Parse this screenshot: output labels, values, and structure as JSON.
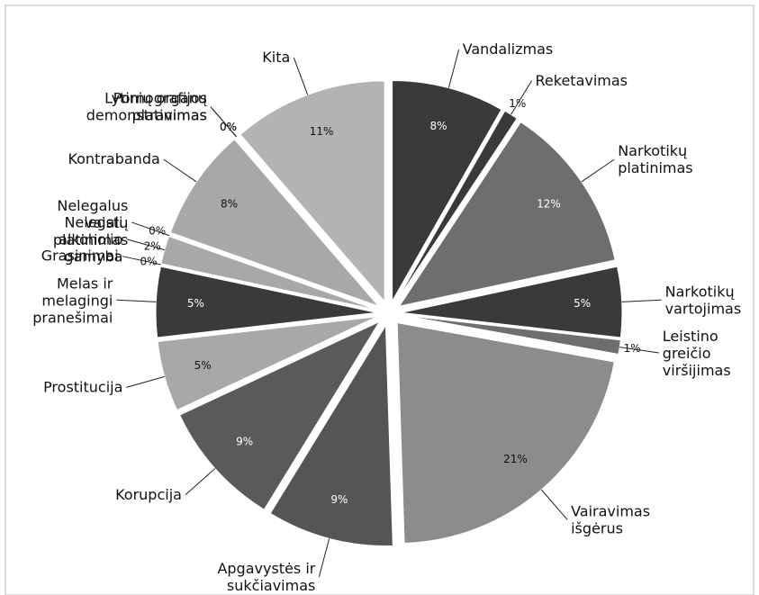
{
  "chart_data": {
    "type": "pie",
    "categories": [
      "Vandalizmas",
      "Reketavimas",
      "Narkotikų platinimas",
      "Narkotikų vartojimas",
      "Leistino greičio viršijimas",
      "Vairavimas išgėrus",
      "Apgavystės ir sukčiavimas",
      "Korupcija",
      "Prostitucija",
      "Melas ir melagingi pranešimai",
      "Grasinimai",
      "Nelegali alkoholio gamyba",
      "Nelegalus vaistų platinimas",
      "Kontrabanda",
      "Pornografijos platinimas",
      "Lytinių organų demonstravimas",
      "Kita"
    ],
    "values": [
      8,
      1,
      12,
      5,
      1,
      21,
      9,
      9,
      5,
      5,
      0,
      2,
      0,
      8,
      0,
      0,
      11
    ],
    "value_labels": [
      "8%",
      "1%",
      "12%",
      "5%",
      "1%",
      "21%",
      "9%",
      "9%",
      "5%",
      "5%",
      "0%",
      "2%",
      "0%",
      "8%",
      "0%",
      "0%",
      "11%"
    ],
    "colors": [
      "#3a3a3a",
      "#3a3a3a",
      "#6e6e6e",
      "#3a3a3a",
      "#6e6e6e",
      "#8c8c8c",
      "#555555",
      "#5a5a5a",
      "#a8a8a8",
      "#3a3a3a",
      "#777777",
      "#a8a8a8",
      "#888888",
      "#a8a8a8",
      "#999999",
      "#aaaaaa",
      "#b3b3b3"
    ]
  }
}
